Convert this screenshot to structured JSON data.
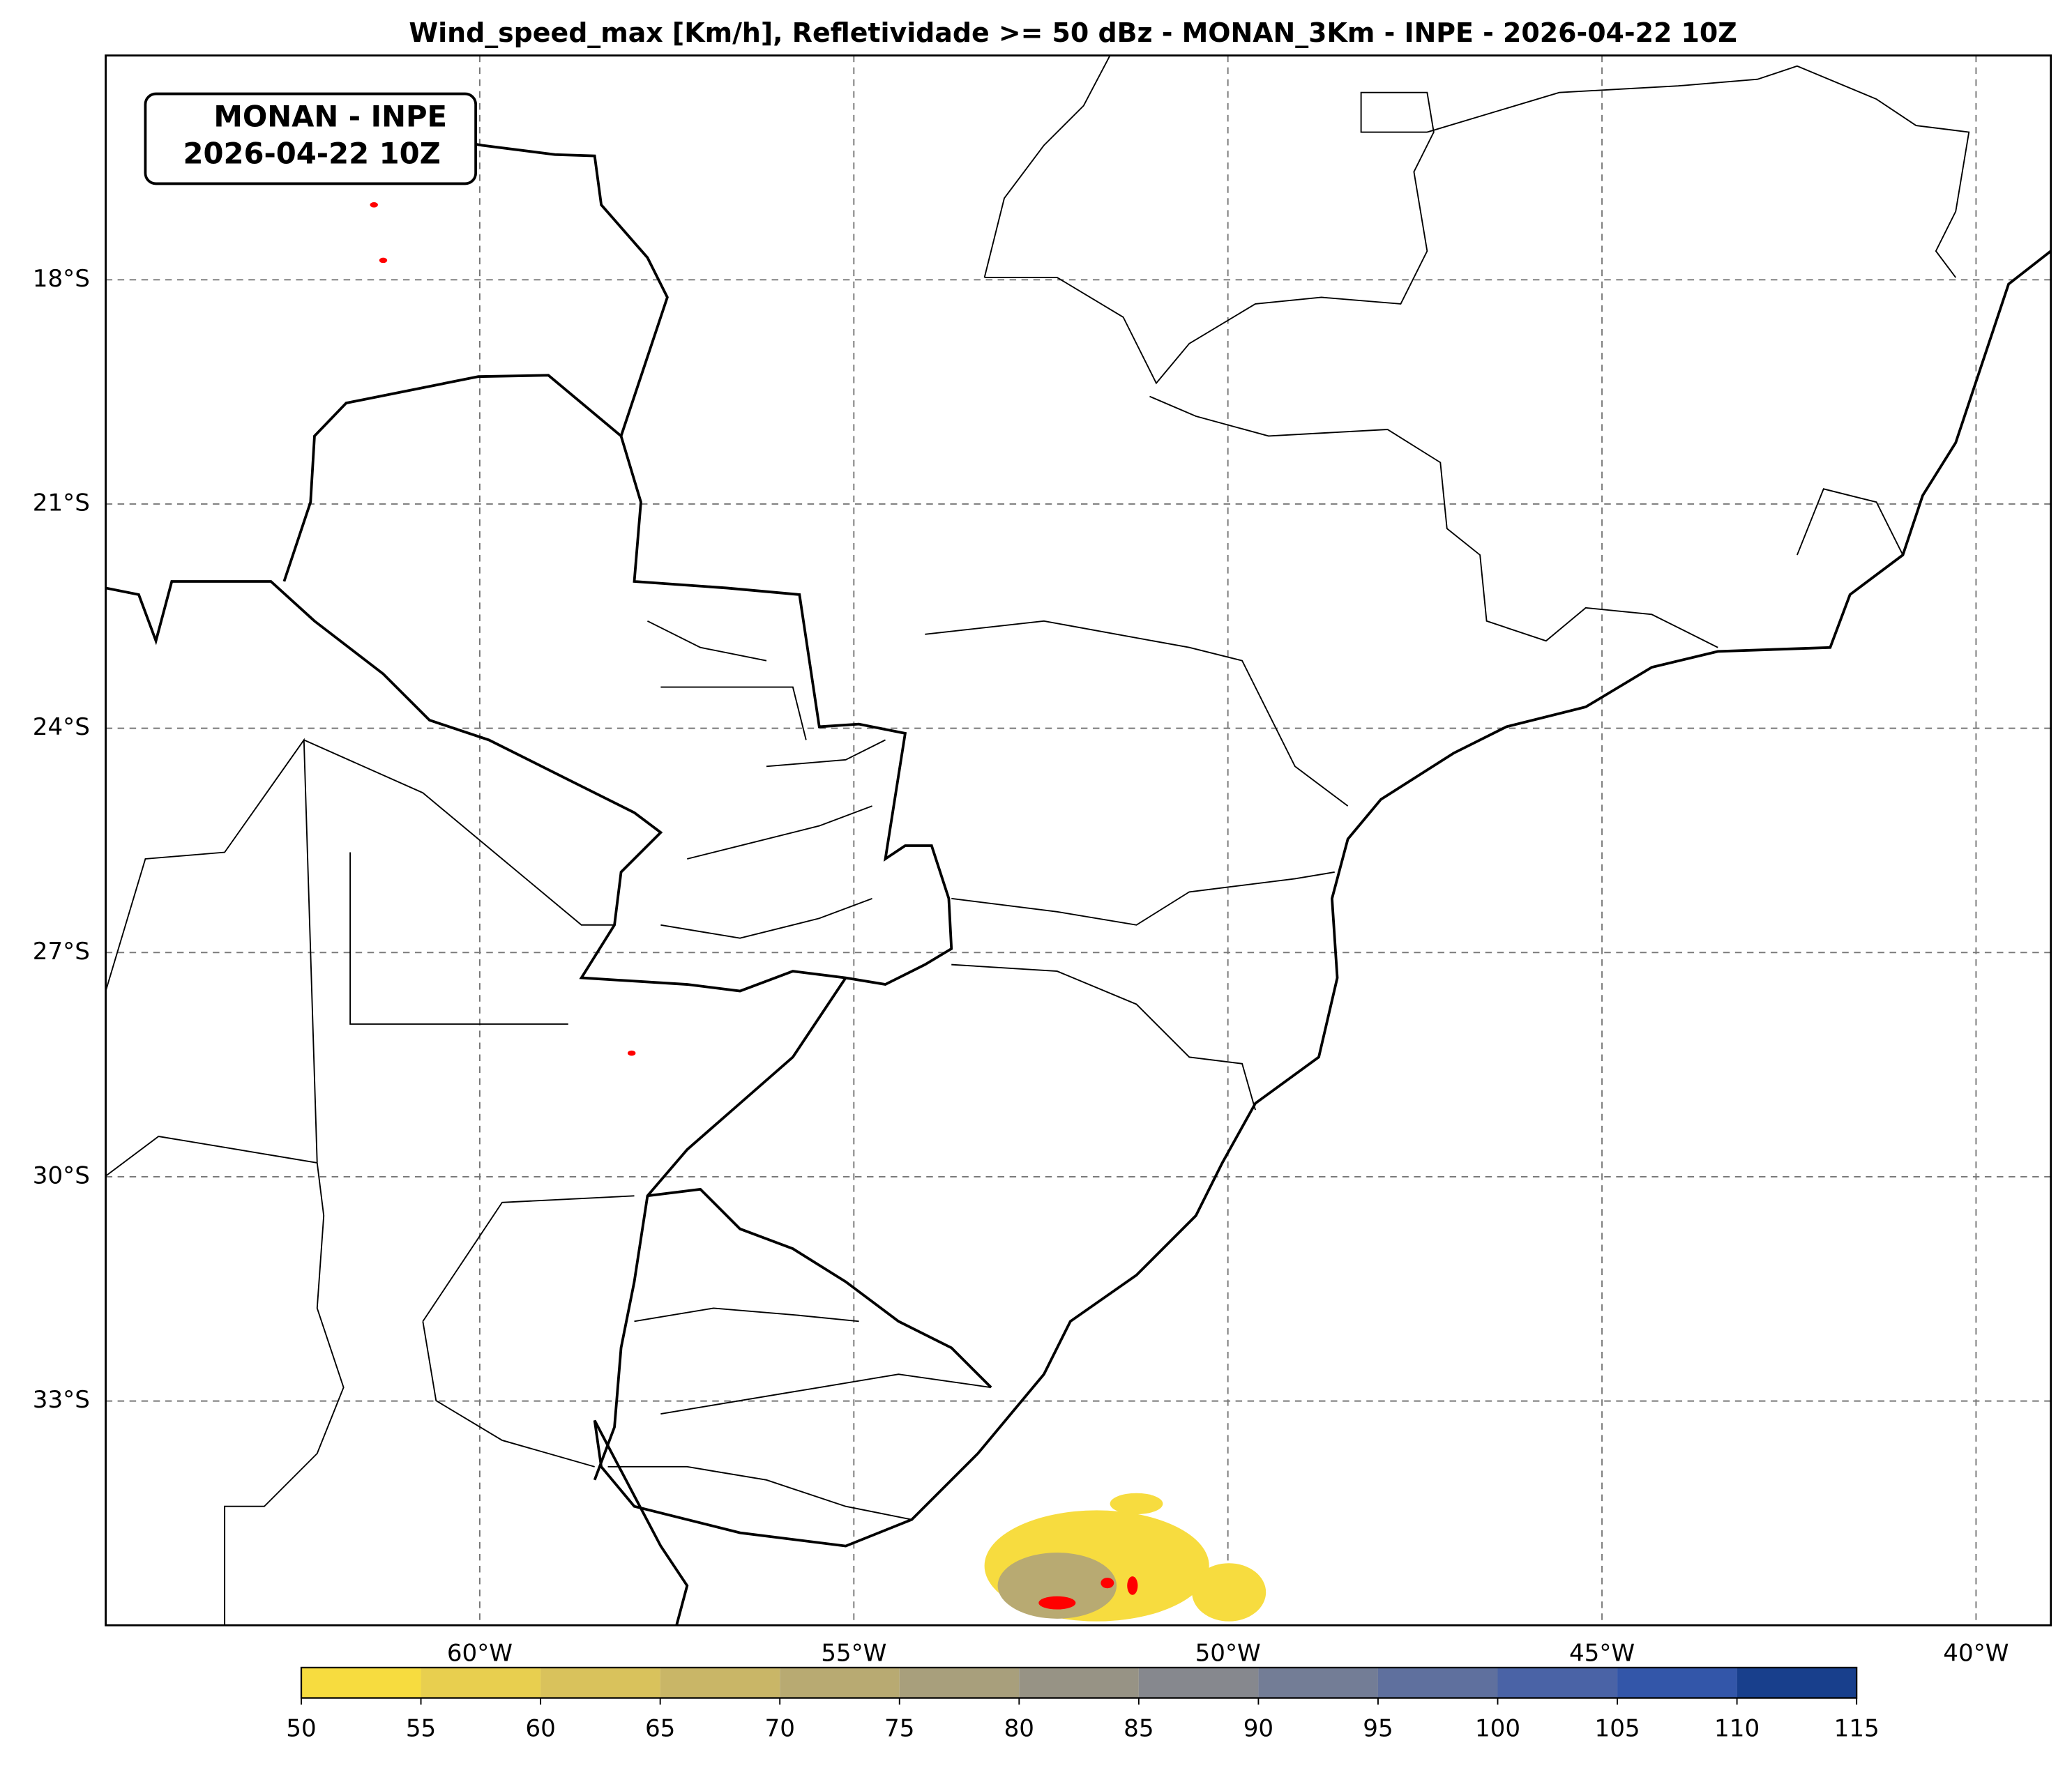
{
  "chart_data": {
    "type": "map",
    "title": "Wind_speed_max [Km/h], Refletividade >= 50 dBz - MONAN_3Km - INPE - 2026-04-22 10Z",
    "annotation": [
      "MONAN - INPE",
      "2026-04-22 10Z"
    ],
    "xlim": [
      -65,
      -39
    ],
    "ylim": [
      -36,
      -15
    ],
    "xticks": [
      {
        "value": -60,
        "label": "60°W"
      },
      {
        "value": -55,
        "label": "55°W"
      },
      {
        "value": -50,
        "label": "50°W"
      },
      {
        "value": -45,
        "label": "45°W"
      },
      {
        "value": -40,
        "label": "40°W"
      }
    ],
    "yticks": [
      {
        "value": -18,
        "label": "18°S"
      },
      {
        "value": -21,
        "label": "21°S"
      },
      {
        "value": -24,
        "label": "24°S"
      },
      {
        "value": -27,
        "label": "27°S"
      },
      {
        "value": -30,
        "label": "30°S"
      },
      {
        "value": -33,
        "label": "33°S"
      }
    ],
    "grid": true,
    "colorbar": {
      "levels": [
        50,
        55,
        60,
        65,
        70,
        75,
        80,
        85,
        90,
        95,
        100,
        105,
        110,
        115
      ],
      "colors": [
        "#f7dc3f",
        "#e8cf4f",
        "#d9c25c",
        "#c9b667",
        "#b8aa72",
        "#a89f7c",
        "#979385",
        "#86888e",
        "#737d96",
        "#5f709e",
        "#4a63a6",
        "#3356a9",
        "#183f8c",
        "#0a2a64"
      ]
    }
  }
}
